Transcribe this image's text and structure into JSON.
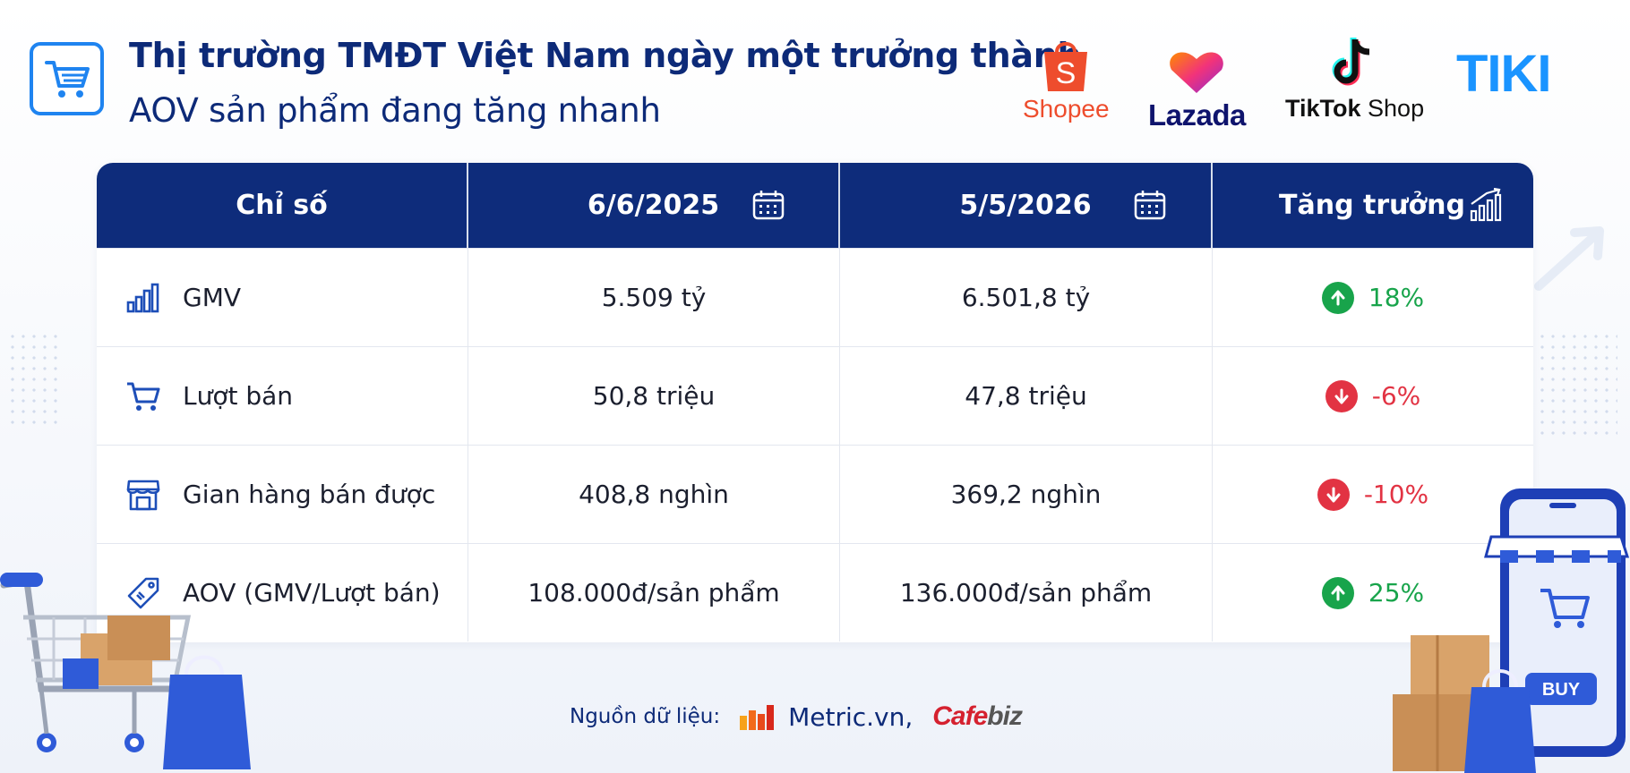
{
  "header": {
    "title": "Thị trường TMĐT Việt Nam ngày một trưởng thành",
    "subtitle": "AOV sản phẩm đang tăng nhanh",
    "icon": "shopping-cart-icon"
  },
  "brands": [
    {
      "name": "Shopee",
      "color": "#ee4d2d"
    },
    {
      "name": "Lazada",
      "color": "#0f146d"
    },
    {
      "name": "TikTok Shop",
      "bold": "TikTok",
      "rest": " Shop",
      "color": "#111111"
    },
    {
      "name": "TIKI",
      "color": "#1a94ff"
    }
  ],
  "table": {
    "columns": [
      {
        "label": "Chỉ số"
      },
      {
        "label": "6/6/2025",
        "icon": "calendar-icon"
      },
      {
        "label": "5/5/2026",
        "icon": "calendar-icon"
      },
      {
        "label": "Tăng trưởng",
        "icon": "growth-chart-icon"
      }
    ],
    "rows": [
      {
        "metric": "GMV",
        "icon": "bar-chart-icon",
        "v2025": "5.509 tỷ",
        "v2026": "6.501,8 tỷ",
        "growth": "18%",
        "direction": "up"
      },
      {
        "metric": "Lượt bán",
        "icon": "cart-icon",
        "v2025": "50,8 triệu",
        "v2026": "47,8 triệu",
        "growth": "-6%",
        "direction": "down"
      },
      {
        "metric": "Gian hàng bán được",
        "icon": "store-icon",
        "v2025": "408,8 nghìn",
        "v2026": "369,2 nghìn",
        "growth": "-10%",
        "direction": "down"
      },
      {
        "metric": "AOV (GMV/Lượt bán)",
        "icon": "price-tag-icon",
        "v2025": "108.000đ/sản phẩm",
        "v2026": "136.000đ/sản phẩm",
        "growth": "25%",
        "direction": "up"
      }
    ]
  },
  "footer": {
    "source_label": "Nguồn dữ liệu:",
    "source_1": "Metric.vn,",
    "source_2_red": "Cafe",
    "source_2_gray": "biz"
  },
  "colors": {
    "navy": "#0e2c7b",
    "accent_blue": "#1f84f0",
    "growth_up": "#18a44b",
    "growth_down": "#e23343"
  }
}
